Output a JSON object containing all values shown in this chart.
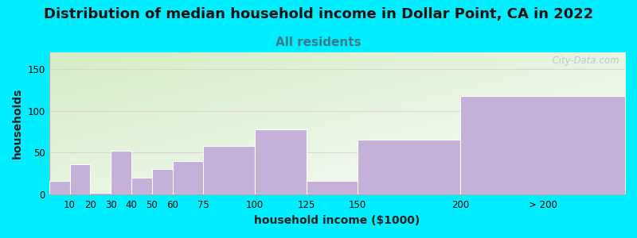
{
  "title": "Distribution of median household income in Dollar Point, CA in 2022",
  "subtitle": "All residents",
  "xlabel": "household income ($1000)",
  "ylabel": "households",
  "categories": [
    "10",
    "20",
    "30",
    "40",
    "50",
    "60",
    "75",
    "100",
    "125",
    "150",
    "200",
    "> 200"
  ],
  "values": [
    16,
    36,
    2,
    52,
    20,
    30,
    40,
    58,
    78,
    16,
    65,
    118
  ],
  "bar_color": "#c4b0d8",
  "bar_edge_color": "#b0a0cc",
  "background_outer": "#00eeff",
  "title_fontsize": 13,
  "subtitle_fontsize": 11,
  "subtitle_color": "#3a7a8a",
  "title_color": "#111111",
  "axis_label_fontsize": 10,
  "tick_fontsize": 8.5,
  "ylim": [
    0,
    170
  ],
  "yticks": [
    0,
    50,
    100,
    150
  ],
  "watermark": "  City-Data.com",
  "bar_widths": [
    10,
    10,
    10,
    10,
    10,
    15,
    25,
    25,
    25,
    50,
    50,
    80
  ],
  "bar_lefts": [
    0,
    10,
    20,
    30,
    40,
    50,
    60,
    75,
    100,
    125,
    150,
    200
  ],
  "xlim_max": 280
}
